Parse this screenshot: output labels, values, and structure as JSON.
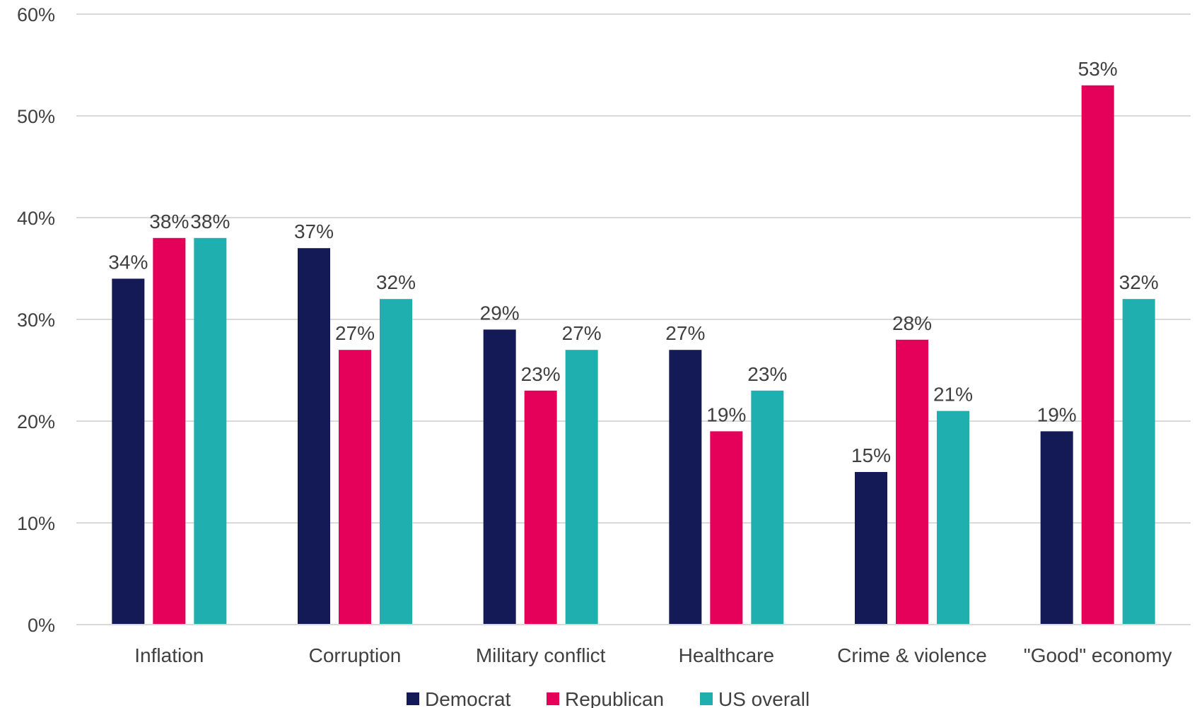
{
  "chart_data": {
    "type": "bar",
    "categories": [
      "Inflation",
      "Corruption",
      "Military conflict",
      "Healthcare",
      "Crime & violence",
      "\"Good\" economy"
    ],
    "series": [
      {
        "name": "Democrat",
        "color": "#141a55",
        "values": [
          34,
          37,
          29,
          27,
          15,
          19
        ]
      },
      {
        "name": "Republican",
        "color": "#e5005a",
        "values": [
          38,
          27,
          23,
          19,
          28,
          53
        ]
      },
      {
        "name": "US overall",
        "color": "#1eafae",
        "values": [
          38,
          32,
          27,
          23,
          21,
          32
        ]
      }
    ],
    "ylim": [
      0,
      60
    ],
    "yticks": [
      0,
      10,
      20,
      30,
      40,
      50,
      60
    ],
    "tick_suffix": "%",
    "grid": true,
    "legend": "bottom-center",
    "title": "",
    "xlabel": "",
    "ylabel": ""
  }
}
